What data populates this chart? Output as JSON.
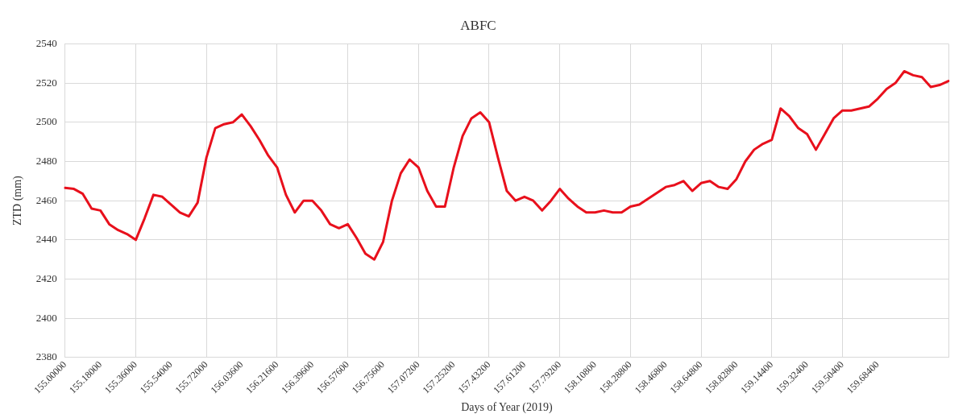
{
  "chart_data": {
    "type": "line",
    "title": "ABFC",
    "xlabel": "Days of Year (2019)",
    "ylabel": "ZTD (mm)",
    "categories": [
      "155.00000",
      null,
      null,
      null,
      "155.18000",
      null,
      null,
      null,
      "155.36000",
      null,
      null,
      null,
      "155.54000",
      null,
      null,
      null,
      "155.72000",
      null,
      null,
      null,
      "156.03600",
      null,
      null,
      null,
      "156.21600",
      null,
      null,
      null,
      "156.39600",
      null,
      null,
      null,
      "156.57600",
      null,
      null,
      null,
      "156.75600",
      null,
      null,
      null,
      "157.07200",
      null,
      null,
      null,
      "157.25200",
      null,
      null,
      null,
      "157.43200",
      null,
      null,
      null,
      "157.61200",
      null,
      null,
      null,
      "157.79200",
      null,
      null,
      null,
      "158.10800",
      null,
      null,
      null,
      "158.28800",
      null,
      null,
      null,
      "158.46800",
      null,
      null,
      null,
      "158.64800",
      null,
      null,
      null,
      "158.82800",
      null,
      null,
      null,
      "159.14400",
      null,
      null,
      null,
      "159.32400",
      null,
      null,
      null,
      "159.50400",
      null,
      null,
      null,
      "159.68400",
      null,
      null,
      null,
      null,
      null,
      null,
      null,
      null
    ],
    "series": [
      {
        "color": "#e8101c",
        "values": [
          2466.5,
          2466,
          2463.5,
          2456,
          2455,
          2448,
          2445,
          2443,
          2440,
          2451,
          2463,
          2462,
          2458,
          2454,
          2452,
          2459,
          2482,
          2497,
          2499,
          2500,
          2504,
          2498,
          2491,
          2483,
          2477,
          2463,
          2454,
          2460,
          2460,
          2455,
          2448,
          2446,
          2448,
          2441,
          2433,
          2430,
          2439,
          2460,
          2474,
          2481,
          2477,
          2465,
          2457,
          2457,
          2477,
          2493,
          2502,
          2505,
          2500,
          2482,
          2465,
          2460,
          2462,
          2460,
          2455,
          2460,
          2466,
          2461,
          2457,
          2454,
          2454,
          2455,
          2454,
          2454,
          2457,
          2458,
          2461,
          2464,
          2467,
          2468,
          2470,
          2465,
          2469,
          2470,
          2467,
          2466,
          2471,
          2480,
          2486,
          2489,
          2491,
          2507,
          2503,
          2497,
          2494,
          2486,
          2494,
          2502,
          2506,
          2506,
          2507,
          2508,
          2512,
          2517,
          2520,
          2526,
          2524,
          2523,
          2518,
          2519,
          2521
        ]
      }
    ],
    "ylim": [
      2380,
      2540
    ],
    "yticks": [
      2380,
      2400,
      2420,
      2440,
      2460,
      2480,
      2500,
      2520,
      2540
    ],
    "grid": true,
    "legend": false,
    "marker": "none",
    "line_style": "solid"
  }
}
